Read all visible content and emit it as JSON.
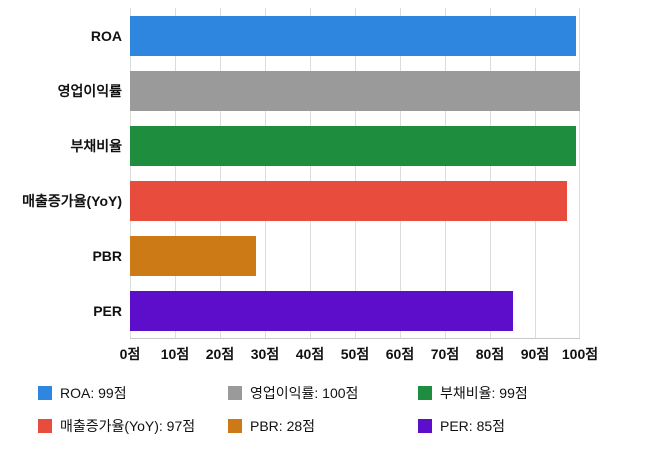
{
  "chart_data": {
    "type": "bar",
    "orientation": "horizontal",
    "title": "",
    "categories": [
      "ROA",
      "영업이익률",
      "부채비율",
      "매출증가율(YoY)",
      "PBR",
      "PER"
    ],
    "values": [
      99,
      100,
      99,
      97,
      28,
      85
    ],
    "unit": "점",
    "colors": [
      "#2e86de",
      "#9a9a9a",
      "#1e8e3e",
      "#e74c3c",
      "#cc7a15",
      "#5c0ecb"
    ],
    "xlim": [
      0,
      100
    ],
    "x_ticks": [
      "0점",
      "10점",
      "20점",
      "30점",
      "40점",
      "50점",
      "60점",
      "70점",
      "80점",
      "90점",
      "100점"
    ],
    "grid": true,
    "legend_position": "bottom",
    "legend": [
      {
        "label": "ROA: 99점",
        "color": "#2e86de"
      },
      {
        "label": "영업이익률: 100점",
        "color": "#9a9a9a"
      },
      {
        "label": "부채비율: 99점",
        "color": "#1e8e3e"
      },
      {
        "label": "매출증가율(YoY): 97점",
        "color": "#e74c3c"
      },
      {
        "label": "PBR: 28점",
        "color": "#cc7a15"
      },
      {
        "label": "PER: 85점",
        "color": "#5c0ecb"
      }
    ]
  }
}
